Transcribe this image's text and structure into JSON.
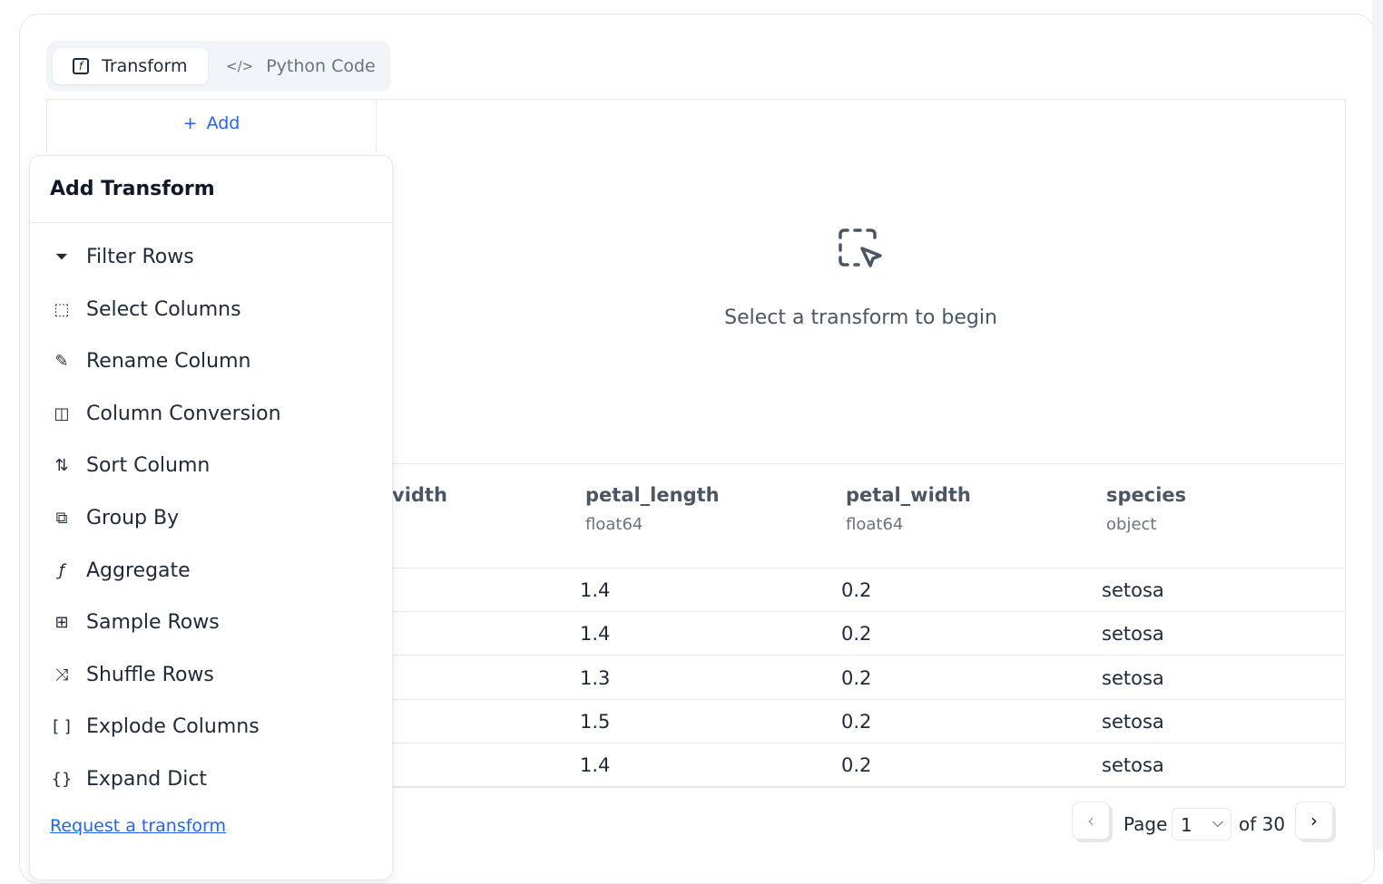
{
  "tabs": [
    {
      "label": "Transform",
      "icon": "function-icon",
      "active": true
    },
    {
      "label": "Python Code",
      "icon": "code-icon",
      "active": false
    }
  ],
  "add_button": "Add",
  "empty_state": {
    "text": "Select a transform to begin",
    "icon": "dashed-select-cursor-icon"
  },
  "table": {
    "columns": [
      {
        "name": "width",
        "partial": "vidth",
        "type": ""
      },
      {
        "name": "petal_length",
        "type": "float64"
      },
      {
        "name": "petal_width",
        "type": "float64"
      },
      {
        "name": "species",
        "type": "object"
      }
    ],
    "rows": [
      [
        "1.4",
        "0.2",
        "setosa"
      ],
      [
        "1.4",
        "0.2",
        "setosa"
      ],
      [
        "1.3",
        "0.2",
        "setosa"
      ],
      [
        "1.5",
        "0.2",
        "setosa"
      ],
      [
        "1.4",
        "0.2",
        "setosa"
      ]
    ]
  },
  "menu": {
    "title": "Add Transform",
    "items": [
      {
        "label": "Filter Rows",
        "icon": "filter-icon"
      },
      {
        "label": "Select Columns",
        "icon": "select-columns-icon"
      },
      {
        "label": "Rename Column",
        "icon": "pencil-icon"
      },
      {
        "label": "Column Conversion",
        "icon": "columns-icon"
      },
      {
        "label": "Sort Column",
        "icon": "sort-icon"
      },
      {
        "label": "Group By",
        "icon": "group-icon"
      },
      {
        "label": "Aggregate",
        "icon": "function-icon"
      },
      {
        "label": "Sample Rows",
        "icon": "sample-icon"
      },
      {
        "label": "Shuffle Rows",
        "icon": "shuffle-icon"
      },
      {
        "label": "Explode Columns",
        "icon": "brackets-icon"
      },
      {
        "label": "Expand Dict",
        "icon": "file-braces-icon"
      }
    ],
    "request_link": "Request a transform"
  },
  "pagination": {
    "page_label": "Page",
    "current": "1",
    "of_label": "of 30"
  },
  "colors": {
    "accent": "#2563eb",
    "border": "#e5e7eb"
  }
}
